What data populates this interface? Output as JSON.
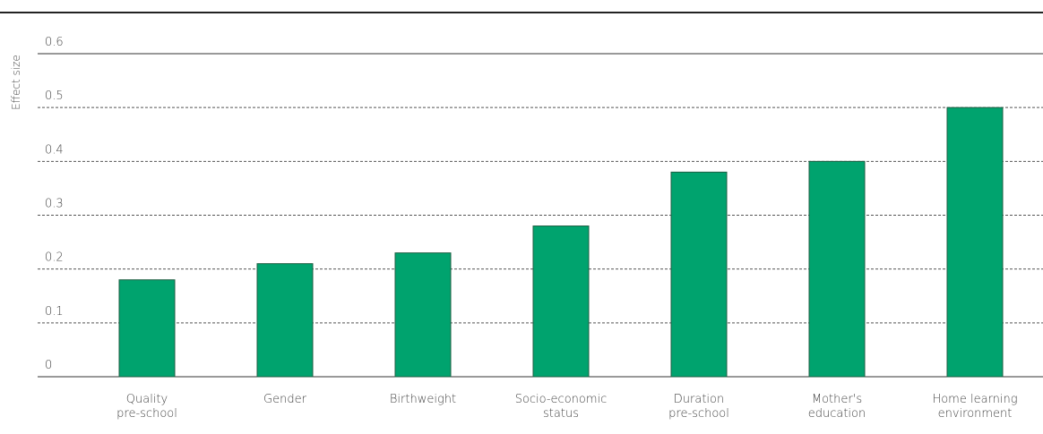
{
  "chart_data": {
    "type": "bar",
    "y_label": "Effect size",
    "categories": [
      "Quality\npre-school",
      "Gender",
      "Birthweight",
      "Socio-economic\nstatus",
      "Duration\npre-school",
      "Mother's\neducation",
      "Home learning\nenvironment"
    ],
    "values": [
      0.18,
      0.21,
      0.23,
      0.28,
      0.38,
      0.4,
      0.5
    ],
    "color": "#00a36e",
    "ylim": [
      0,
      0.6
    ],
    "yticks": [
      0,
      0.1,
      0.2,
      0.3,
      0.4,
      0.5,
      0.6
    ],
    "grid": true
  }
}
